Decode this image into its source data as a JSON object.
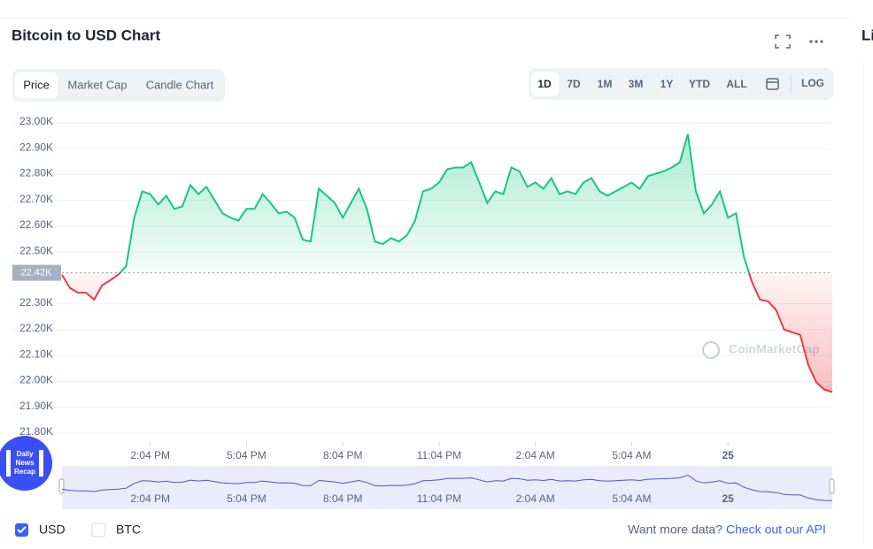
{
  "header": {
    "title": "Bitcoin to USD Chart",
    "cut_title": "Li"
  },
  "tabs": [
    "Price",
    "Market Cap",
    "Candle Chart"
  ],
  "ranges": [
    "1D",
    "7D",
    "1M",
    "3M",
    "1Y",
    "YTD",
    "ALL"
  ],
  "log": "LOG",
  "badge": [
    "Daily",
    "News",
    "Recap"
  ],
  "currencies": [
    "USD",
    "BTC"
  ],
  "footer": {
    "prompt": "Want more data?",
    "link": "Check out our API"
  },
  "chart_data": {
    "type": "line",
    "watermark": "CoinMarketCap",
    "categories": [
      null,
      null,
      null,
      null,
      null,
      null,
      null,
      null,
      null,
      null,
      null,
      "2:04 PM",
      null,
      null,
      null,
      null,
      null,
      null,
      null,
      null,
      null,
      null,
      null,
      "5:04 PM",
      null,
      null,
      null,
      null,
      null,
      null,
      null,
      null,
      null,
      null,
      null,
      "8:04 PM",
      null,
      null,
      null,
      null,
      null,
      null,
      null,
      null,
      null,
      null,
      null,
      "11:04 PM",
      null,
      null,
      null,
      null,
      null,
      null,
      null,
      null,
      null,
      null,
      null,
      "2:04 AM",
      null,
      null,
      null,
      null,
      null,
      null,
      null,
      null,
      null,
      null,
      null,
      "5:04 AM",
      null,
      null,
      null,
      null,
      null,
      null,
      null,
      null,
      null,
      null,
      null,
      "25",
      null,
      null,
      null,
      null,
      null,
      null,
      null,
      null,
      null,
      null,
      null,
      null,
      null
    ],
    "values": [
      22412,
      22361,
      22343,
      22343,
      22316,
      22371,
      22391,
      22412,
      22446,
      22633,
      22735,
      22724,
      22684,
      22718,
      22667,
      22677,
      22759,
      22724,
      22752,
      22701,
      22650,
      22633,
      22622,
      22667,
      22667,
      22724,
      22690,
      22650,
      22656,
      22633,
      22548,
      22541,
      22745,
      22718,
      22690,
      22633,
      22690,
      22745,
      22667,
      22541,
      22531,
      22554,
      22541,
      22565,
      22622,
      22735,
      22745,
      22769,
      22820,
      22827,
      22827,
      22847,
      22769,
      22690,
      22735,
      22724,
      22827,
      22813,
      22752,
      22769,
      22745,
      22786,
      22724,
      22735,
      22724,
      22769,
      22786,
      22735,
      22718,
      22735,
      22752,
      22769,
      22745,
      22793,
      22803,
      22813,
      22827,
      22847,
      22956,
      22735,
      22650,
      22684,
      22735,
      22633,
      22650,
      22480,
      22384,
      22316,
      22310,
      22276,
      22201,
      22190,
      22180,
      22065,
      21997,
      21969,
      21959
    ],
    "reference": {
      "value": 22420,
      "label": "22.42K"
    },
    "up_color": "#16c784",
    "down_color": "#ea3943",
    "ylim": [
      21766,
      23037
    ],
    "yticks": [
      {
        "value": 21800,
        "label": "21.80K"
      },
      {
        "value": 21900,
        "label": "21.90K"
      },
      {
        "value": 22000,
        "label": "22.00K"
      },
      {
        "value": 22100,
        "label": "22.10K"
      },
      {
        "value": 22200,
        "label": "22.20K"
      },
      {
        "value": 22300,
        "label": "22.30K"
      },
      {
        "value": 22500,
        "label": "22.50K"
      },
      {
        "value": 22600,
        "label": "22.60K"
      },
      {
        "value": 22700,
        "label": "22.70K"
      },
      {
        "value": 22800,
        "label": "22.80K"
      },
      {
        "value": 22900,
        "label": "22.90K"
      },
      {
        "value": 23000,
        "label": "23.00K"
      }
    ],
    "grid": true
  }
}
